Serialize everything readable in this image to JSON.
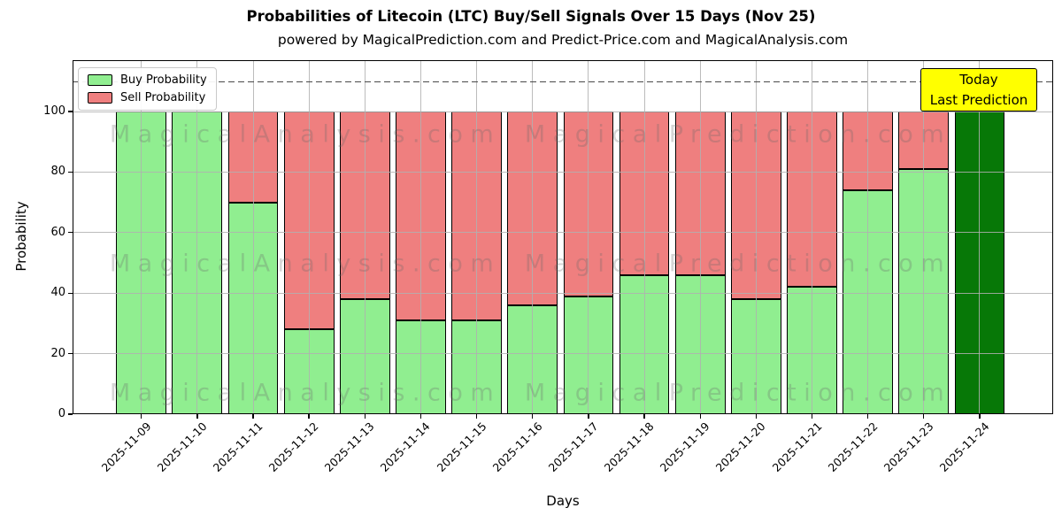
{
  "title": "Probabilities of Litecoin (LTC) Buy/Sell Signals Over 15 Days (Nov 25)",
  "subtitle": "powered by MagicalPrediction.com and Predict-Price.com and MagicalAnalysis.com",
  "legend": {
    "items": [
      {
        "label": "Buy Probability",
        "color": "#90EE90"
      },
      {
        "label": "Sell Probability",
        "color": "#EF7F7F"
      }
    ]
  },
  "annotation": {
    "line1": "Today",
    "line2": "Last Prediction",
    "bg_color": "#FFFF00"
  },
  "watermarks": {
    "left": "MagicalAnalysis.com",
    "right": "MagicalPrediction.com"
  },
  "axes": {
    "x_label": "Days",
    "y_label": "Probability"
  },
  "colors": {
    "buy": "#90EE90",
    "sell": "#EF7F7F",
    "today_bar": "#077807",
    "bar_edge": "#000000",
    "grid": "#b0b0b0",
    "dashed_line": "#4a4a4a",
    "annotation_bg": "#FFFF00"
  },
  "chart_data": {
    "type": "bar",
    "stacked": true,
    "title": "Probabilities of Litecoin (LTC) Buy/Sell Signals Over 15 Days (Nov 25)",
    "subtitle": "powered by MagicalPrediction.com and Predict-Price.com and MagicalAnalysis.com",
    "xlabel": "Days",
    "ylabel": "Probability",
    "categories": [
      "2025-11-09",
      "2025-11-10",
      "2025-11-11",
      "2025-11-12",
      "2025-11-13",
      "2025-11-14",
      "2025-11-15",
      "2025-11-16",
      "2025-11-17",
      "2025-11-18",
      "2025-11-19",
      "2025-11-20",
      "2025-11-21",
      "2025-11-22",
      "2025-11-23",
      "2025-11-24"
    ],
    "series": [
      {
        "name": "Buy Probability",
        "color": "#90EE90",
        "values": [
          100,
          100,
          70,
          28,
          38,
          31,
          31,
          36,
          39,
          46,
          46,
          38,
          42,
          74,
          81,
          100
        ]
      },
      {
        "name": "Sell Probability",
        "color": "#EF7F7F",
        "values": [
          0,
          0,
          30,
          72,
          62,
          69,
          69,
          64,
          61,
          54,
          54,
          62,
          58,
          26,
          19,
          0
        ]
      }
    ],
    "today": {
      "index": 15,
      "date": "2025-11-24",
      "color": "#077807",
      "annotation": "Today / Last Prediction"
    },
    "y_ticks": [
      0,
      20,
      40,
      60,
      80,
      100
    ],
    "ylim": [
      0,
      117
    ],
    "dashed_line_y": 110,
    "grid": true,
    "legend_position": "upper left"
  }
}
